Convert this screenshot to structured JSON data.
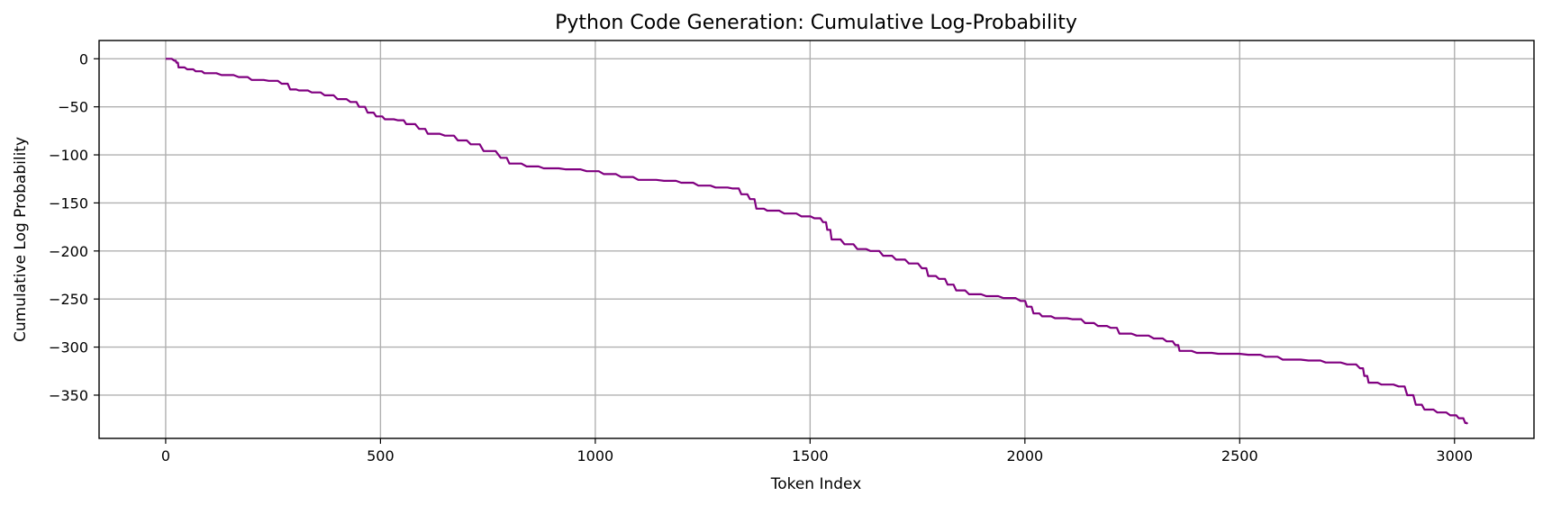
{
  "chart_data": {
    "type": "line",
    "title": "Python Code Generation: Cumulative Log-Probability",
    "xlabel": "Token Index",
    "ylabel": "Cumulative Log Probability",
    "xlim": [
      -155,
      3185
    ],
    "ylim": [
      -395,
      19
    ],
    "xticks": [
      0,
      500,
      1000,
      1500,
      2000,
      2500,
      3000
    ],
    "yticks": [
      0,
      -50,
      -100,
      -150,
      -200,
      -250,
      -300,
      -350
    ],
    "grid": true,
    "series": [
      {
        "color": "#800080",
        "points": [
          [
            0,
            0
          ],
          [
            20,
            -2
          ],
          [
            25,
            -4
          ],
          [
            30,
            -9
          ],
          [
            50,
            -11
          ],
          [
            70,
            -13
          ],
          [
            90,
            -15
          ],
          [
            130,
            -17
          ],
          [
            170,
            -19
          ],
          [
            200,
            -22
          ],
          [
            240,
            -23
          ],
          [
            270,
            -26
          ],
          [
            290,
            -32
          ],
          [
            310,
            -33
          ],
          [
            340,
            -35
          ],
          [
            370,
            -38
          ],
          [
            400,
            -42
          ],
          [
            430,
            -45
          ],
          [
            450,
            -50
          ],
          [
            470,
            -56
          ],
          [
            490,
            -60
          ],
          [
            510,
            -63
          ],
          [
            540,
            -64
          ],
          [
            560,
            -68
          ],
          [
            590,
            -73
          ],
          [
            610,
            -78
          ],
          [
            650,
            -80
          ],
          [
            680,
            -85
          ],
          [
            710,
            -89
          ],
          [
            740,
            -96
          ],
          [
            780,
            -103
          ],
          [
            800,
            -109
          ],
          [
            840,
            -112
          ],
          [
            880,
            -114
          ],
          [
            930,
            -115
          ],
          [
            980,
            -117
          ],
          [
            1020,
            -120
          ],
          [
            1060,
            -123
          ],
          [
            1100,
            -126
          ],
          [
            1160,
            -127
          ],
          [
            1200,
            -129
          ],
          [
            1240,
            -132
          ],
          [
            1280,
            -134
          ],
          [
            1320,
            -135
          ],
          [
            1340,
            -141
          ],
          [
            1360,
            -146
          ],
          [
            1375,
            -156
          ],
          [
            1400,
            -158
          ],
          [
            1440,
            -161
          ],
          [
            1480,
            -164
          ],
          [
            1510,
            -166
          ],
          [
            1530,
            -170
          ],
          [
            1540,
            -178
          ],
          [
            1550,
            -188
          ],
          [
            1580,
            -193
          ],
          [
            1610,
            -198
          ],
          [
            1640,
            -200
          ],
          [
            1670,
            -205
          ],
          [
            1700,
            -209
          ],
          [
            1730,
            -213
          ],
          [
            1760,
            -218
          ],
          [
            1775,
            -226
          ],
          [
            1800,
            -229
          ],
          [
            1820,
            -235
          ],
          [
            1840,
            -241
          ],
          [
            1870,
            -245
          ],
          [
            1910,
            -247
          ],
          [
            1950,
            -249
          ],
          [
            1990,
            -252
          ],
          [
            2005,
            -258
          ],
          [
            2020,
            -265
          ],
          [
            2040,
            -268
          ],
          [
            2070,
            -270
          ],
          [
            2110,
            -271
          ],
          [
            2140,
            -275
          ],
          [
            2170,
            -278
          ],
          [
            2200,
            -280
          ],
          [
            2220,
            -286
          ],
          [
            2260,
            -288
          ],
          [
            2300,
            -291
          ],
          [
            2330,
            -294
          ],
          [
            2350,
            -298
          ],
          [
            2360,
            -304
          ],
          [
            2400,
            -306
          ],
          [
            2450,
            -307
          ],
          [
            2520,
            -308
          ],
          [
            2560,
            -310
          ],
          [
            2600,
            -313
          ],
          [
            2660,
            -314
          ],
          [
            2700,
            -316
          ],
          [
            2750,
            -318
          ],
          [
            2780,
            -322
          ],
          [
            2790,
            -330
          ],
          [
            2800,
            -337
          ],
          [
            2830,
            -339
          ],
          [
            2870,
            -341
          ],
          [
            2890,
            -350
          ],
          [
            2910,
            -360
          ],
          [
            2930,
            -365
          ],
          [
            2960,
            -368
          ],
          [
            2990,
            -371
          ],
          [
            3010,
            -374
          ],
          [
            3025,
            -379
          ],
          [
            3030,
            -380
          ]
        ]
      }
    ]
  }
}
